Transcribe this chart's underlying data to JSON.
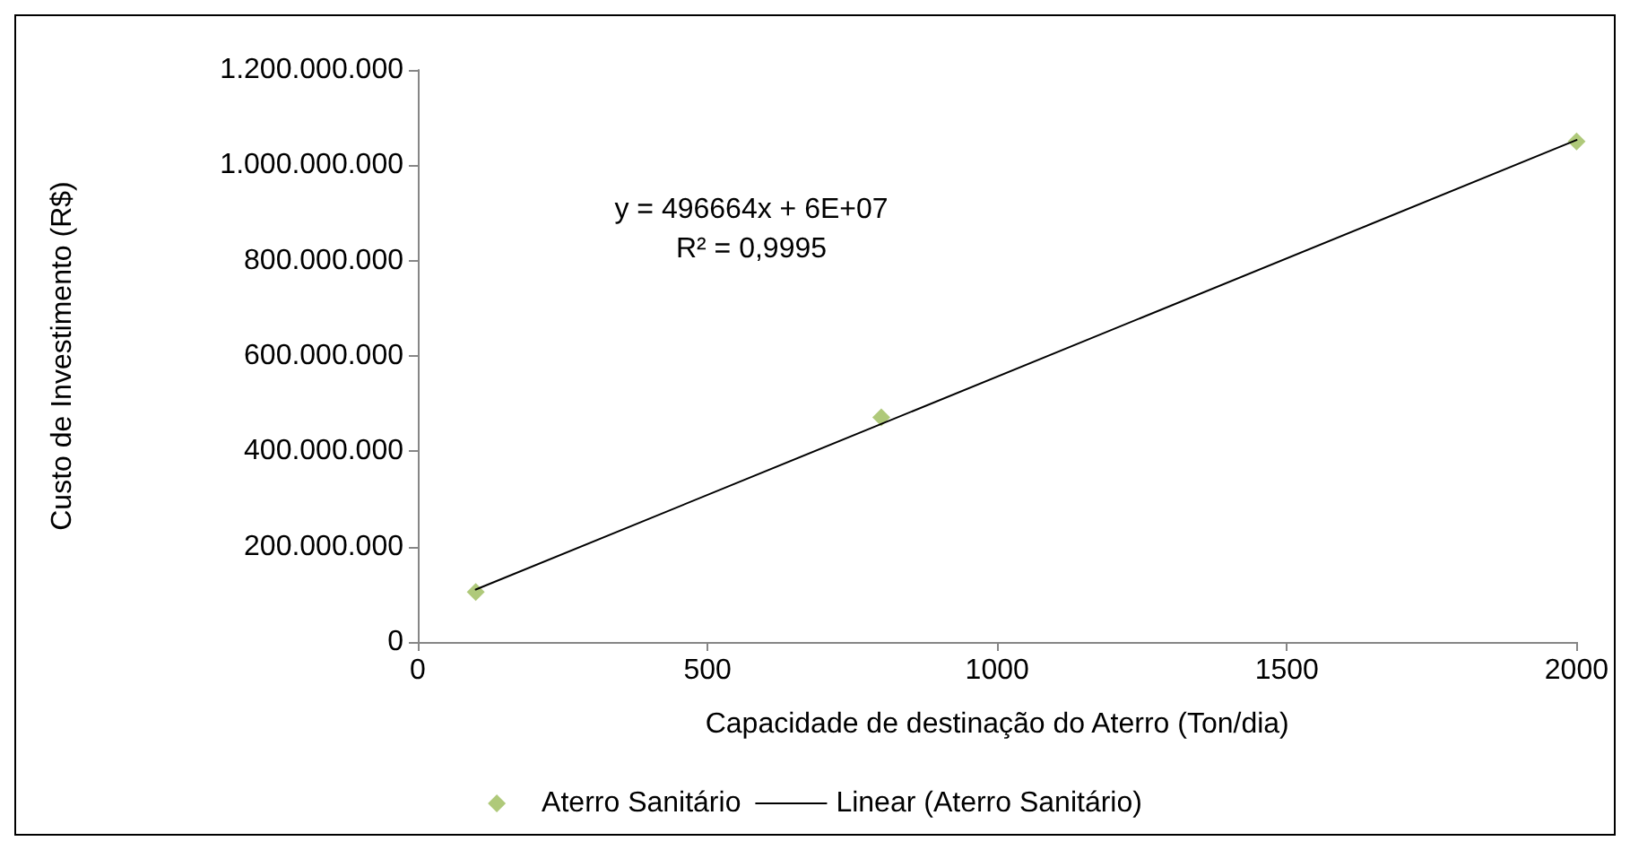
{
  "chart_data": {
    "type": "scatter",
    "xlabel": "Capacidade de destinação do Aterro (Ton/dia)",
    "ylabel": "Custo de Investimento (R$)",
    "series": [
      {
        "name": "Aterro Sanitário",
        "color": "#9bbb59",
        "marker": "diamond",
        "x": [
          100,
          800,
          2000
        ],
        "values": [
          105000000,
          471000000,
          1050000000
        ]
      },
      {
        "name": "Linear (Aterro Sanitário)",
        "type": "line",
        "color": "#000000",
        "marker": "none",
        "line_style": "solid",
        "x": [
          100,
          2000
        ],
        "values": [
          110000000,
          1053000000
        ]
      }
    ],
    "xlim": [
      0,
      2000
    ],
    "xticks": [
      0,
      500,
      1000,
      1500,
      2000
    ],
    "ylim": [
      0,
      1200000000
    ],
    "yticks": [
      0,
      {
        "value": 200000000,
        "label": "200.000.000"
      },
      {
        "value": 400000000,
        "label": "400.000.000"
      },
      {
        "value": 600000000,
        "label": "600.000.000"
      },
      {
        "value": 800000000,
        "label": "800.000.000"
      },
      {
        "value": 1000000000,
        "label": "1.000.000.000"
      },
      {
        "value": 1200000000,
        "label": "1.200.000.000"
      }
    ],
    "annotations": [
      "y = 496664x + 6E+07",
      "R² = 0,9995"
    ],
    "grid": false,
    "legend": "bottom"
  }
}
